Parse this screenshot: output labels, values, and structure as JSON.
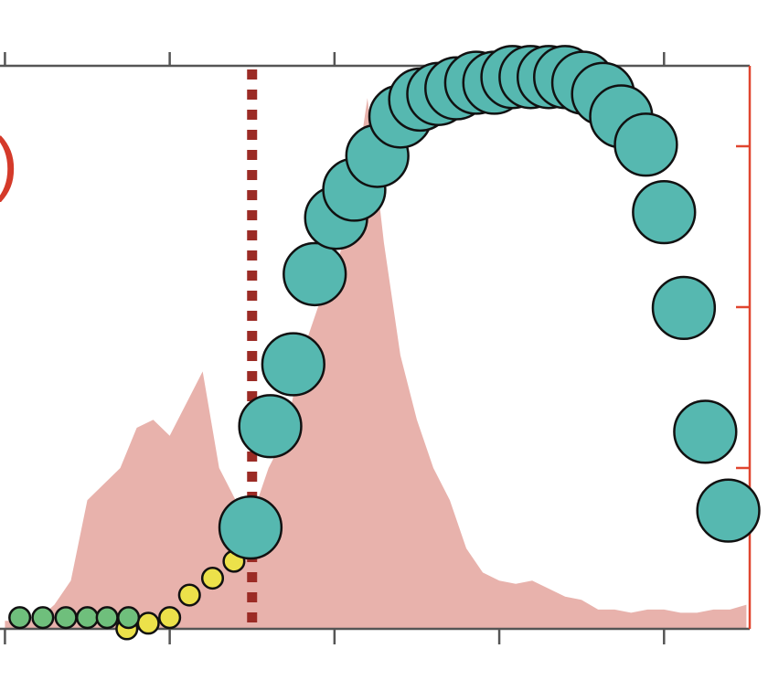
{
  "chart_data": {
    "type": "scatter",
    "annotation": ")",
    "annotation_color": "#d43a2a",
    "xlim": [
      -0.03,
      4.52
    ],
    "xticks": [
      0,
      1,
      2,
      3,
      4
    ],
    "ylim": [
      0,
      1
    ],
    "y2lim": [
      0,
      3.5
    ],
    "y2ticks": [
      1,
      2,
      3
    ],
    "axis_color": "#555555",
    "y2_axis_color": "#e0452f",
    "vline": 1.5,
    "vline_color": "#9b2b25",
    "series": [
      {
        "type": "area",
        "axis": "y2",
        "color": "#e8b2ac",
        "x": [
          0,
          0.1,
          0.2,
          0.3,
          0.4,
          0.5,
          0.6,
          0.7,
          0.8,
          0.9,
          1.0,
          1.1,
          1.2,
          1.3,
          1.4,
          1.5,
          1.6,
          1.7,
          1.8,
          1.9,
          2.0,
          2.1,
          2.2,
          2.3,
          2.4,
          2.5,
          2.6,
          2.7,
          2.8,
          2.9,
          3.0,
          3.1,
          3.2,
          3.3,
          3.4,
          3.5,
          3.6,
          3.7,
          3.8,
          3.9,
          4.0,
          4.1,
          4.2,
          4.3,
          4.4,
          4.5
        ],
        "values": [
          0.05,
          0.05,
          0.06,
          0.15,
          0.3,
          0.8,
          0.9,
          1.0,
          1.25,
          1.3,
          1.2,
          1.4,
          1.6,
          1.0,
          0.8,
          0.7,
          1.0,
          1.2,
          1.7,
          2.0,
          2.2,
          2.6,
          3.3,
          2.4,
          1.7,
          1.3,
          1.0,
          0.8,
          0.5,
          0.35,
          0.3,
          0.28,
          0.3,
          0.25,
          0.2,
          0.18,
          0.12,
          0.12,
          0.1,
          0.12,
          0.12,
          0.1,
          0.1,
          0.12,
          0.12,
          0.15
        ]
      },
      {
        "type": "scatter",
        "color": "#ece14a",
        "x": [
          0.74,
          0.87,
          1.0,
          1.12,
          1.26,
          1.39
        ],
        "values": [
          0.0,
          0.01,
          0.02,
          0.06,
          0.09,
          0.12
        ],
        "sizes": [
          1,
          1,
          1,
          1,
          1,
          1
        ]
      },
      {
        "type": "scatter",
        "color": "#6fbf7c",
        "x": [
          0.09,
          0.23,
          0.37,
          0.5,
          0.62,
          0.75
        ],
        "values": [
          0.02,
          0.02,
          0.02,
          0.02,
          0.02,
          0.02
        ],
        "sizes": [
          1,
          1,
          1,
          1,
          1,
          1
        ]
      },
      {
        "type": "scatter",
        "color": "#56b8b0",
        "x": [
          1.49,
          1.61,
          1.75,
          1.88,
          2.01,
          2.12,
          2.26,
          2.4,
          2.52,
          2.63,
          2.74,
          2.86,
          2.97,
          3.08,
          3.19,
          3.3,
          3.4,
          3.51,
          3.63,
          3.74,
          3.89,
          4.0,
          4.12,
          4.25,
          4.39
        ],
        "values": [
          0.18,
          0.36,
          0.47,
          0.63,
          0.73,
          0.78,
          0.84,
          0.91,
          0.94,
          0.95,
          0.96,
          0.97,
          0.97,
          0.98,
          0.98,
          0.98,
          0.98,
          0.97,
          0.95,
          0.91,
          0.86,
          0.74,
          0.57,
          0.35,
          0.21
        ],
        "sizes": [
          3,
          3,
          3,
          3,
          3,
          3,
          3,
          3,
          3,
          3,
          3,
          3,
          3,
          3,
          3,
          3,
          3,
          3,
          3,
          3,
          3,
          3,
          3,
          3,
          3
        ]
      }
    ]
  }
}
